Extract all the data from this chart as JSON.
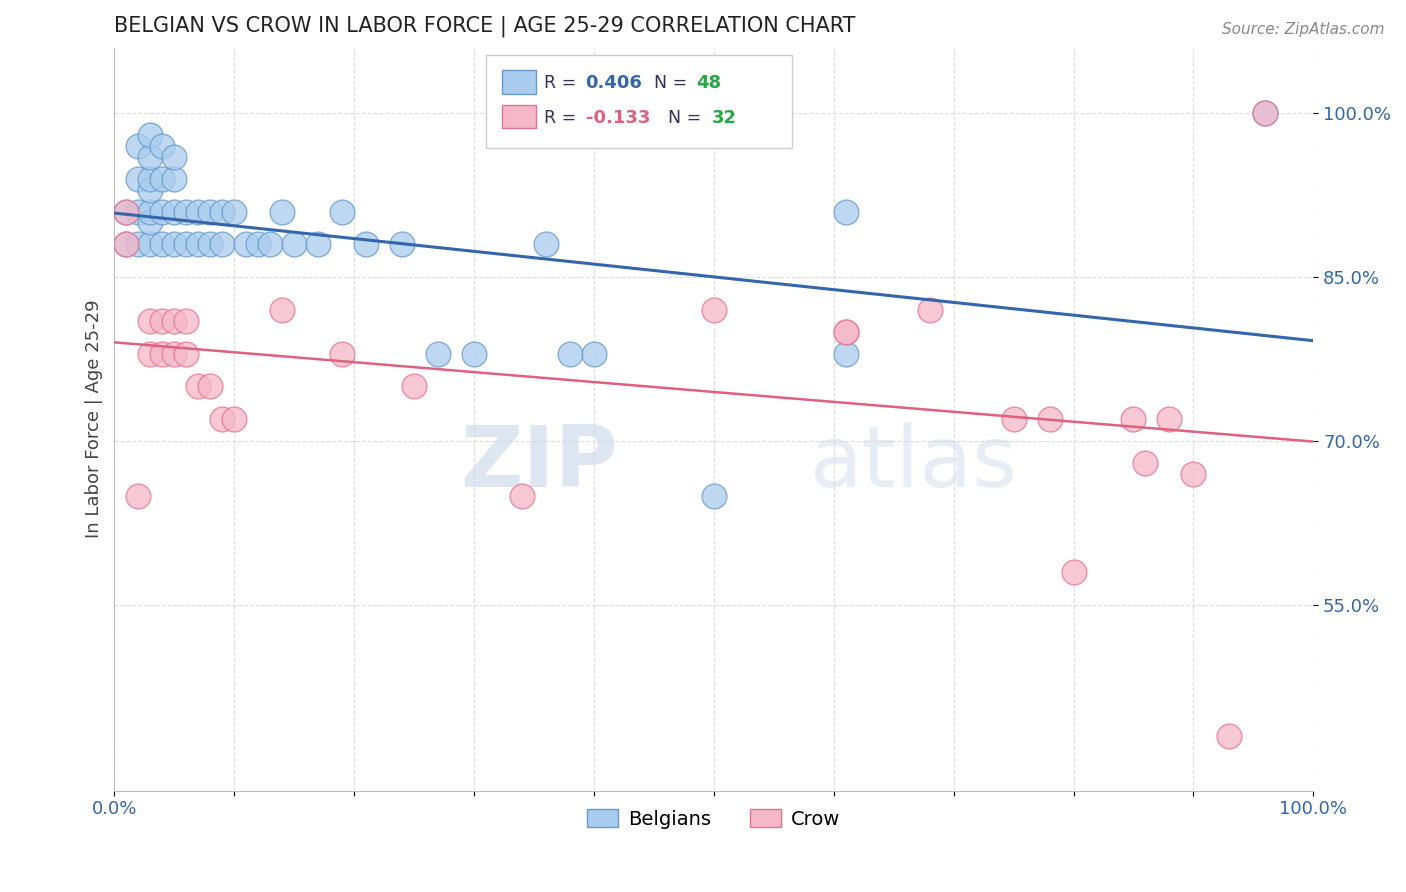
{
  "title": "BELGIAN VS CROW IN LABOR FORCE | AGE 25-29 CORRELATION CHART",
  "ylabel": "In Labor Force | Age 25-29",
  "source": "Source: ZipAtlas.com",
  "xlim": [
    0.0,
    1.0
  ],
  "ylim": [
    0.38,
    1.06
  ],
  "yticks": [
    0.55,
    0.7,
    0.85,
    1.0
  ],
  "ytick_labels": [
    "55.0%",
    "70.0%",
    "85.0%",
    "100.0%"
  ],
  "xticks": [
    0.0,
    0.1,
    0.2,
    0.3,
    0.4,
    0.5,
    0.6,
    0.7,
    0.8,
    0.9,
    1.0
  ],
  "blue_color": "#AACCEE",
  "pink_color": "#F4B8C8",
  "blue_edge_color": "#6699CC",
  "pink_edge_color": "#E87090",
  "blue_line_color": "#3366AA",
  "pink_line_color": "#E06080",
  "legend_R_blue": "0.406",
  "legend_N_blue": "48",
  "legend_R_pink": "-0.133",
  "legend_N_pink": "32",
  "blue_scatter_x": [
    0.01,
    0.01,
    0.02,
    0.02,
    0.02,
    0.02,
    0.03,
    0.03,
    0.03,
    0.03,
    0.03,
    0.03,
    0.03,
    0.04,
    0.04,
    0.04,
    0.04,
    0.05,
    0.05,
    0.05,
    0.05,
    0.06,
    0.06,
    0.07,
    0.07,
    0.08,
    0.08,
    0.09,
    0.09,
    0.1,
    0.11,
    0.12,
    0.13,
    0.14,
    0.15,
    0.17,
    0.19,
    0.21,
    0.24,
    0.27,
    0.3,
    0.36,
    0.38,
    0.4,
    0.5,
    0.61,
    0.61,
    0.96
  ],
  "blue_scatter_y": [
    0.88,
    0.91,
    0.88,
    0.91,
    0.94,
    0.97,
    0.88,
    0.9,
    0.91,
    0.93,
    0.94,
    0.96,
    0.98,
    0.88,
    0.91,
    0.94,
    0.97,
    0.88,
    0.91,
    0.94,
    0.96,
    0.88,
    0.91,
    0.88,
    0.91,
    0.88,
    0.91,
    0.88,
    0.91,
    0.91,
    0.88,
    0.88,
    0.88,
    0.91,
    0.88,
    0.88,
    0.91,
    0.88,
    0.88,
    0.78,
    0.78,
    0.88,
    0.78,
    0.78,
    0.65,
    0.78,
    0.91,
    1.0
  ],
  "pink_scatter_x": [
    0.01,
    0.01,
    0.02,
    0.03,
    0.03,
    0.04,
    0.04,
    0.05,
    0.05,
    0.06,
    0.06,
    0.07,
    0.08,
    0.09,
    0.1,
    0.14,
    0.19,
    0.25,
    0.34,
    0.5,
    0.61,
    0.61,
    0.68,
    0.75,
    0.78,
    0.8,
    0.85,
    0.86,
    0.88,
    0.9,
    0.93,
    0.96
  ],
  "pink_scatter_y": [
    0.88,
    0.91,
    0.65,
    0.78,
    0.81,
    0.78,
    0.81,
    0.78,
    0.81,
    0.78,
    0.81,
    0.75,
    0.75,
    0.72,
    0.72,
    0.82,
    0.78,
    0.75,
    0.65,
    0.82,
    0.8,
    0.8,
    0.82,
    0.72,
    0.72,
    0.58,
    0.72,
    0.68,
    0.72,
    0.67,
    0.43,
    1.0
  ],
  "watermark_zip": "ZIP",
  "watermark_atlas": "atlas",
  "grid_color": "#DDDDDD",
  "title_color": "#222222",
  "axis_tick_color": "#3366AA",
  "ylabel_color": "#444444"
}
